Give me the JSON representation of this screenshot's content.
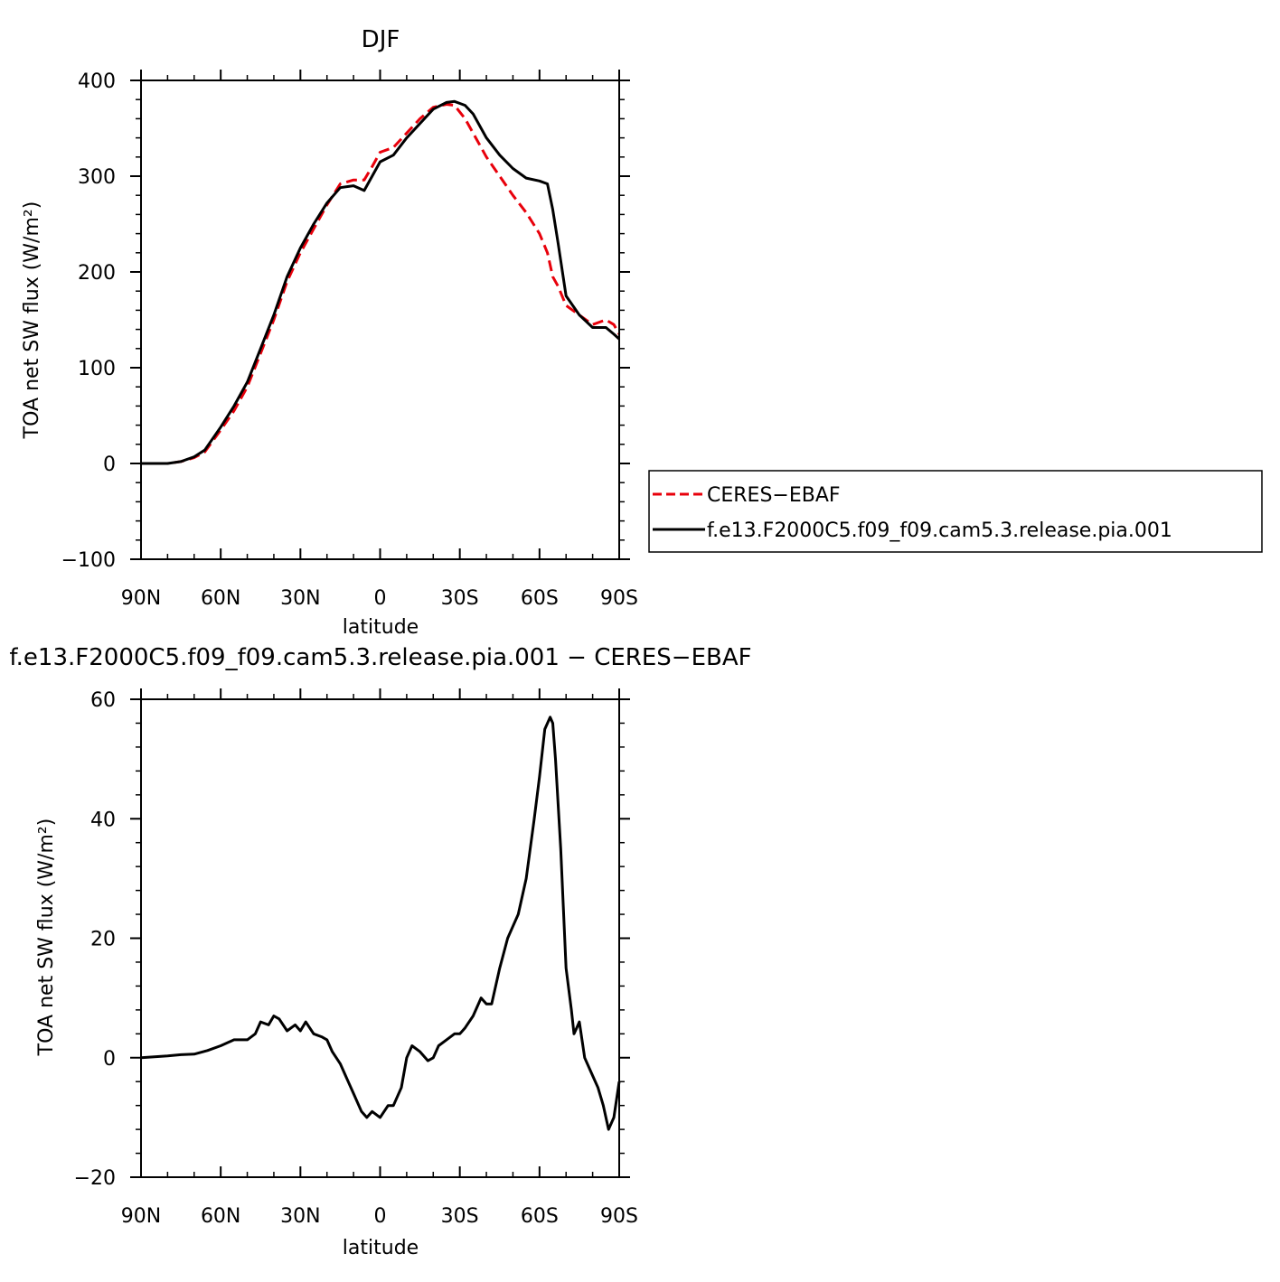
{
  "chart_data": [
    {
      "type": "line",
      "title": "DJF",
      "xlabel": "latitude",
      "ylabel": "TOA net SW flux (W/m²)",
      "xlim": [
        -90,
        90
      ],
      "ylim": [
        -100,
        400
      ],
      "x_ticks": [
        -90,
        -60,
        -30,
        0,
        30,
        60,
        90
      ],
      "x_tick_labels": [
        "90N",
        "60N",
        "30N",
        "0",
        "30S",
        "60S",
        "90S"
      ],
      "y_ticks": [
        -100,
        0,
        100,
        200,
        300,
        400
      ],
      "y_tick_labels": [
        "−100",
        "0",
        "100",
        "200",
        "300",
        "400"
      ],
      "legend": {
        "placement": "right",
        "entries": [
          "CERES−EBAF",
          "f.e13.F2000C5.f09_f09.cam5.3.release.pia.001"
        ]
      },
      "series": [
        {
          "name": "CERES−EBAF",
          "color": "#e8000b",
          "style": "dashed",
          "x": [
            -90,
            -80,
            -75,
            -70,
            -66,
            -60,
            -55,
            -50,
            -45,
            -40,
            -35,
            -30,
            -25,
            -20,
            -15,
            -10,
            -6,
            -3,
            0,
            5,
            10,
            15,
            20,
            25,
            28,
            32,
            35,
            40,
            45,
            50,
            55,
            60,
            63,
            65,
            67,
            70,
            75,
            80,
            85,
            88,
            90
          ],
          "y": [
            0,
            0,
            2,
            6,
            12,
            35,
            55,
            80,
            115,
            150,
            190,
            220,
            245,
            270,
            292,
            296,
            296,
            310,
            325,
            330,
            345,
            360,
            372,
            375,
            374,
            360,
            345,
            320,
            300,
            280,
            262,
            240,
            220,
            195,
            185,
            165,
            155,
            145,
            150,
            145,
            135
          ]
        },
        {
          "name": "f.e13.F2000C5.f09_f09.cam5.3.release.pia.001",
          "color": "#000000",
          "style": "solid",
          "x": [
            -90,
            -80,
            -75,
            -70,
            -66,
            -60,
            -55,
            -50,
            -45,
            -40,
            -35,
            -30,
            -25,
            -20,
            -15,
            -10,
            -6,
            -3,
            0,
            5,
            10,
            15,
            20,
            25,
            28,
            32,
            35,
            40,
            45,
            50,
            55,
            60,
            63,
            65,
            67,
            70,
            75,
            80,
            85,
            88,
            90
          ],
          "y": [
            0,
            0,
            2,
            7,
            14,
            38,
            60,
            85,
            120,
            155,
            195,
            225,
            250,
            272,
            288,
            290,
            285,
            300,
            315,
            322,
            340,
            355,
            370,
            377,
            378,
            374,
            365,
            340,
            322,
            308,
            298,
            295,
            292,
            265,
            230,
            175,
            155,
            142,
            142,
            135,
            130
          ]
        }
      ]
    },
    {
      "type": "line",
      "title": "f.e13.F2000C5.f09_f09.cam5.3.release.pia.001 − CERES−EBAF",
      "xlabel": "latitude",
      "ylabel": "TOA net SW flux (W/m²)",
      "xlim": [
        -90,
        90
      ],
      "ylim": [
        -20,
        60
      ],
      "x_ticks": [
        -90,
        -60,
        -30,
        0,
        30,
        60,
        90
      ],
      "x_tick_labels": [
        "90N",
        "60N",
        "30N",
        "0",
        "30S",
        "60S",
        "90S"
      ],
      "y_ticks": [
        -20,
        0,
        20,
        40,
        60
      ],
      "y_tick_labels": [
        "−20",
        "0",
        "20",
        "40",
        "60"
      ],
      "series": [
        {
          "color": "#000000",
          "style": "solid",
          "x": [
            -90,
            -80,
            -75,
            -70,
            -65,
            -60,
            -55,
            -50,
            -47,
            -45,
            -42,
            -40,
            -38,
            -35,
            -32,
            -30,
            -28,
            -25,
            -22,
            -20,
            -18,
            -15,
            -12,
            -10,
            -7,
            -5,
            -3,
            0,
            3,
            5,
            8,
            10,
            12,
            15,
            18,
            20,
            22,
            25,
            28,
            30,
            32,
            35,
            38,
            40,
            42,
            45,
            48,
            50,
            52,
            55,
            58,
            60,
            62,
            64,
            65,
            66,
            68,
            70,
            72,
            73,
            74,
            75,
            77,
            80,
            82,
            84,
            86,
            88,
            90
          ],
          "y": [
            0,
            0.3,
            0.5,
            0.6,
            1.2,
            2,
            3,
            3,
            4,
            6,
            5.5,
            7,
            6.5,
            4.5,
            5.5,
            4.5,
            6,
            4,
            3.5,
            3,
            1,
            -1,
            -4,
            -6,
            -9,
            -10,
            -9,
            -10,
            -8,
            -8,
            -5,
            0,
            2,
            1,
            -0.5,
            0,
            2,
            3,
            4,
            4,
            5,
            7,
            10,
            9,
            9,
            15,
            20,
            22,
            24,
            30,
            40,
            47,
            55,
            57,
            56,
            50,
            35,
            15,
            8,
            4,
            5,
            6,
            0,
            -3,
            -5,
            -8,
            -12,
            -10,
            -4
          ]
        }
      ]
    }
  ]
}
